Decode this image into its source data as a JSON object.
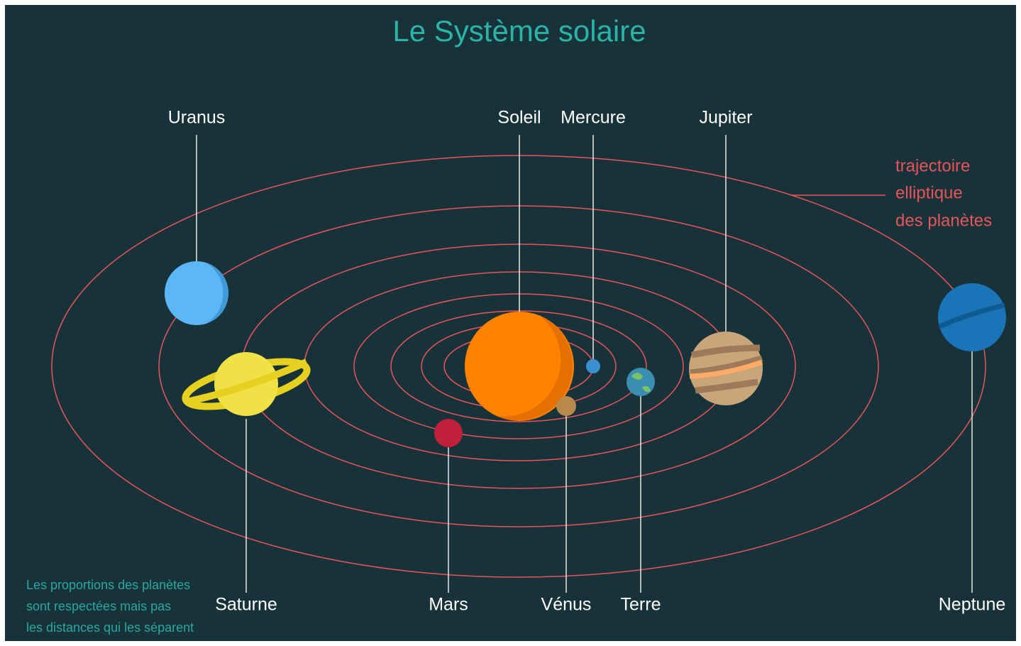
{
  "title": "Le Système solaire",
  "planets": [
    {
      "label": "Uranus"
    },
    {
      "label": "Saturne"
    },
    {
      "label": "Soleil"
    },
    {
      "label": "Mercure"
    },
    {
      "label": "Vénus"
    },
    {
      "label": "Terre"
    },
    {
      "label": "Mars"
    },
    {
      "label": "Jupiter"
    },
    {
      "label": "Neptune"
    }
  ],
  "annotation": {
    "lines": [
      "trajectoire",
      "elliptique",
      "des planètes"
    ]
  },
  "footnote": {
    "lines": [
      "Les proportions des planètes",
      "sont respectées mais pas",
      "les distances qui les séparent"
    ]
  }
}
